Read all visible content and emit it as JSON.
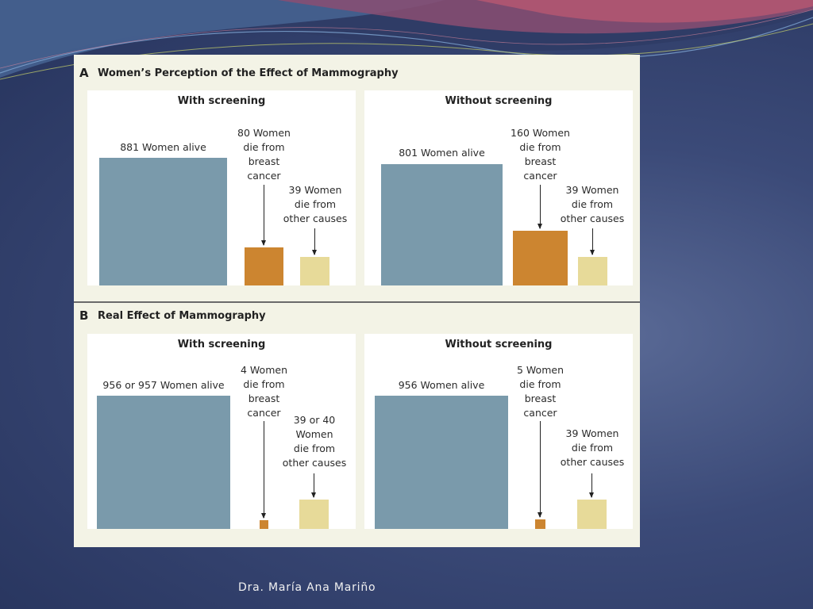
{
  "author": "Dra. María Ana Mariño",
  "chart_data": [
    {
      "type": "bar",
      "panel": "A",
      "title": "Women’s Perception of the Effect of Mammography",
      "groups": [
        {
          "name": "With screening",
          "categories": [
            "Women alive",
            "Women die from breast cancer",
            "Women die from other causes"
          ],
          "values": [
            881,
            80,
            39
          ],
          "labels": [
            "881 Women alive",
            "80 Women\ndie from\nbreast\ncancer",
            "39 Women\ndie from\nother causes"
          ]
        },
        {
          "name": "Without screening",
          "categories": [
            "Women alive",
            "Women die from breast cancer",
            "Women die from other causes"
          ],
          "values": [
            801,
            160,
            39
          ],
          "labels": [
            "801 Women alive",
            "160 Women\ndie from\nbreast\ncancer",
            "39 Women\ndie from\nother causes"
          ]
        }
      ],
      "colors": {
        "alive": "#7a9aab",
        "breast_cancer": "#cc8530",
        "other_causes": "#e7da99"
      }
    },
    {
      "type": "bar",
      "panel": "B",
      "title": "Real Effect of Mammography",
      "groups": [
        {
          "name": "With screening",
          "categories": [
            "Women alive",
            "Women die from breast cancer",
            "Women die from other causes"
          ],
          "values": [
            956.5,
            4,
            39.5
          ],
          "labels": [
            "956 or 957 Women alive",
            "4 Women\ndie from\nbreast\ncancer",
            "39 or 40\nWomen\ndie from\nother causes"
          ]
        },
        {
          "name": "Without screening",
          "categories": [
            "Women alive",
            "Women die from breast cancer",
            "Women die from other causes"
          ],
          "values": [
            956,
            5,
            39
          ],
          "labels": [
            "956 Women alive",
            "5 Women\ndie from\nbreast\ncancer",
            "39 Women\ndie from\nother causes"
          ]
        }
      ],
      "colors": {
        "alive": "#7a9aab",
        "breast_cancer": "#cc8530",
        "other_causes": "#e7da99"
      }
    }
  ]
}
